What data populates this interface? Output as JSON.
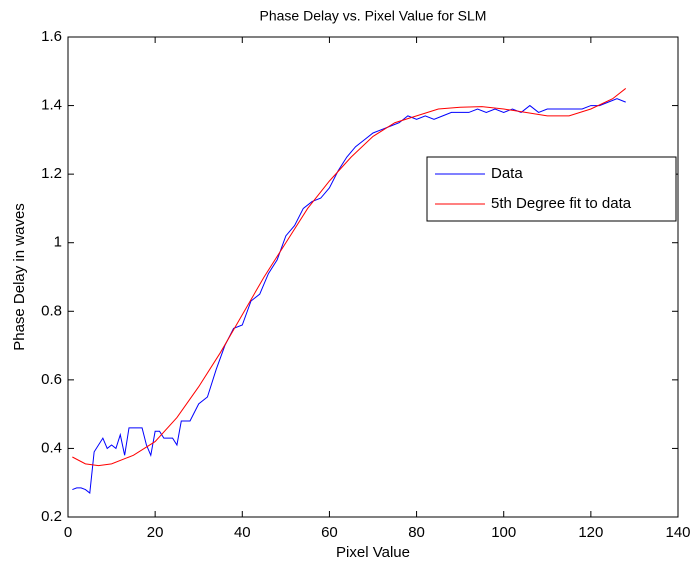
{
  "chart_data": {
    "type": "line",
    "title": "Phase Delay vs. Pixel Value for SLM",
    "x_label": "Pixel Value",
    "y_label": "Phase Delay in waves",
    "xlim": [
      0,
      140
    ],
    "xticks": [
      0,
      20,
      40,
      60,
      80,
      100,
      120,
      140
    ],
    "ylim": [
      0.2,
      1.6
    ],
    "yticks": [
      0.2,
      0.4,
      0.6,
      0.8,
      1,
      1.2,
      1.4,
      1.6
    ],
    "legend": "northeast",
    "series": [
      {
        "name": "Data",
        "color": "#0000ff",
        "x": [
          1,
          2,
          3,
          4,
          5,
          6,
          8,
          9,
          10,
          11,
          12,
          13,
          14,
          16,
          17,
          18,
          19,
          20,
          21,
          22,
          24,
          25,
          26,
          28,
          30,
          32,
          34,
          36,
          38,
          40,
          42,
          44,
          46,
          48,
          50,
          52,
          54,
          56,
          58,
          60,
          62,
          64,
          66,
          68,
          70,
          72,
          74,
          76,
          78,
          80,
          82,
          84,
          86,
          88,
          90,
          92,
          94,
          96,
          98,
          100,
          102,
          104,
          106,
          108,
          110,
          112,
          114,
          116,
          118,
          120,
          122,
          124,
          126,
          128
        ],
        "values": [
          0.28,
          0.285,
          0.285,
          0.28,
          0.27,
          0.39,
          0.43,
          0.4,
          0.41,
          0.4,
          0.44,
          0.38,
          0.46,
          0.46,
          0.46,
          0.41,
          0.38,
          0.45,
          0.45,
          0.43,
          0.43,
          0.41,
          0.48,
          0.48,
          0.53,
          0.55,
          0.63,
          0.7,
          0.75,
          0.76,
          0.83,
          0.85,
          0.91,
          0.95,
          1.02,
          1.05,
          1.1,
          1.12,
          1.13,
          1.16,
          1.21,
          1.25,
          1.28,
          1.3,
          1.32,
          1.33,
          1.34,
          1.35,
          1.37,
          1.36,
          1.37,
          1.36,
          1.37,
          1.38,
          1.38,
          1.38,
          1.39,
          1.38,
          1.39,
          1.38,
          1.39,
          1.38,
          1.4,
          1.38,
          1.39,
          1.39,
          1.39,
          1.39,
          1.39,
          1.4,
          1.4,
          1.41,
          1.42,
          1.41
        ]
      },
      {
        "name": "5th Degree fit to data",
        "color": "#ff0000",
        "x": [
          1,
          4,
          7,
          10,
          15,
          20,
          25,
          30,
          35,
          40,
          45,
          50,
          55,
          60,
          65,
          70,
          75,
          80,
          85,
          90,
          95,
          100,
          105,
          110,
          115,
          120,
          125,
          128
        ],
        "values": [
          0.375,
          0.355,
          0.35,
          0.355,
          0.38,
          0.42,
          0.49,
          0.58,
          0.68,
          0.79,
          0.9,
          1.0,
          1.1,
          1.18,
          1.25,
          1.31,
          1.35,
          1.37,
          1.39,
          1.395,
          1.397,
          1.39,
          1.38,
          1.37,
          1.37,
          1.39,
          1.42,
          1.45
        ]
      }
    ]
  }
}
